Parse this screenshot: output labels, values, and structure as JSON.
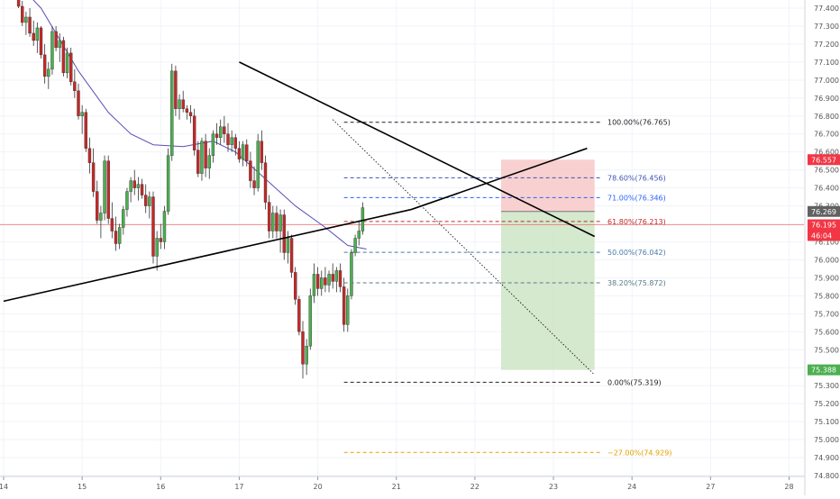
{
  "chart_data": {
    "type": "candlestick",
    "title": "",
    "xlabel": "",
    "ylabel": "",
    "ylim": [
      74.795,
      77.445
    ],
    "y_ticks": [
      "77.400",
      "77.300",
      "77.200",
      "77.100",
      "77.000",
      "76.900",
      "76.800",
      "76.700",
      "76.600",
      "76.500",
      "76.400",
      "76.300",
      "76.200",
      "76.100",
      "76.000",
      "75.900",
      "75.800",
      "75.700",
      "75.600",
      "75.500",
      "75.400",
      "75.300",
      "75.200",
      "75.100",
      "75.000",
      "74.900",
      "74.800"
    ],
    "x_ticks": [
      {
        "label": "14",
        "index": 0
      },
      {
        "label": "15",
        "index": 21
      },
      {
        "label": "16",
        "index": 42
      },
      {
        "label": "17",
        "index": 63
      },
      {
        "label": "20",
        "index": 84
      },
      {
        "label": "21",
        "index": 105
      },
      {
        "label": "22",
        "index": 126
      },
      {
        "label": "23",
        "index": 147
      },
      {
        "label": "24",
        "index": 168
      },
      {
        "label": "27",
        "index": 189
      },
      {
        "label": "28",
        "index": 210
      }
    ],
    "grid": true,
    "colors": {
      "up": "#4caf50",
      "down": "#c62828",
      "ma": "#5b4fb5",
      "trendline": "#000000",
      "fib": "#555555",
      "fib_gold": "#e5a100",
      "stop_zone": "#f8c8c8",
      "target_zone": "#cfe7c8",
      "price_line": "#ef5350"
    },
    "candles": [
      [
        77.46,
        77.5,
        77.4,
        77.41
      ],
      [
        77.41,
        77.44,
        77.3,
        77.32
      ],
      [
        77.32,
        77.38,
        77.25,
        77.35
      ],
      [
        77.35,
        77.4,
        77.24,
        77.26
      ],
      [
        77.26,
        77.33,
        77.19,
        77.22
      ],
      [
        77.22,
        77.32,
        77.15,
        77.29
      ],
      [
        77.29,
        77.3,
        77.12,
        77.14
      ],
      [
        77.14,
        77.2,
        76.98,
        77.02
      ],
      [
        77.02,
        77.1,
        76.95,
        77.06
      ],
      [
        77.06,
        77.3,
        77.03,
        77.27
      ],
      [
        77.27,
        77.3,
        77.16,
        77.18
      ],
      [
        77.18,
        77.26,
        77.1,
        77.22
      ],
      [
        77.22,
        77.24,
        77.02,
        77.04
      ],
      [
        77.04,
        77.18,
        77.01,
        77.15
      ],
      [
        77.15,
        77.18,
        76.97,
        76.99
      ],
      [
        76.99,
        77.06,
        76.9,
        76.94
      ],
      [
        76.94,
        76.98,
        76.78,
        76.8
      ],
      [
        76.8,
        76.86,
        76.7,
        76.82
      ],
      [
        76.82,
        76.84,
        76.6,
        76.62
      ],
      [
        76.62,
        76.68,
        76.48,
        76.54
      ],
      [
        76.54,
        76.62,
        76.35,
        76.38
      ],
      [
        76.38,
        76.44,
        76.2,
        76.22
      ],
      [
        76.22,
        76.3,
        76.12,
        76.26
      ],
      [
        76.26,
        76.58,
        76.22,
        76.55
      ],
      [
        76.55,
        76.58,
        76.2,
        76.23
      ],
      [
        76.23,
        76.32,
        76.12,
        76.16
      ],
      [
        76.16,
        76.24,
        76.05,
        76.09
      ],
      [
        76.09,
        76.2,
        76.06,
        76.18
      ],
      [
        76.18,
        76.3,
        76.14,
        76.28
      ],
      [
        76.28,
        76.4,
        76.24,
        76.38
      ],
      [
        76.38,
        76.46,
        76.32,
        76.44
      ],
      [
        76.44,
        76.5,
        76.36,
        76.4
      ],
      [
        76.4,
        76.46,
        76.33,
        76.42
      ],
      [
        76.42,
        76.45,
        76.34,
        76.36
      ],
      [
        76.36,
        76.42,
        76.26,
        76.3
      ],
      [
        76.3,
        76.38,
        76.23,
        76.35
      ],
      [
        76.35,
        76.38,
        75.98,
        76.02
      ],
      [
        76.02,
        76.16,
        75.94,
        76.12
      ],
      [
        76.12,
        76.2,
        76.06,
        76.1
      ],
      [
        76.1,
        76.3,
        76.06,
        76.27
      ],
      [
        76.27,
        76.62,
        76.25,
        76.58
      ],
      [
        76.58,
        77.09,
        76.55,
        77.05
      ],
      [
        77.05,
        77.08,
        76.8,
        76.84
      ],
      [
        76.84,
        76.92,
        76.78,
        76.89
      ],
      [
        76.89,
        76.94,
        76.82,
        76.84
      ],
      [
        76.84,
        76.86,
        76.78,
        76.82
      ],
      [
        76.82,
        76.86,
        76.76,
        76.8
      ],
      [
        76.8,
        76.84,
        76.58,
        76.61
      ],
      [
        76.61,
        76.66,
        76.46,
        76.48
      ],
      [
        76.48,
        76.68,
        76.44,
        76.66
      ],
      [
        76.66,
        76.7,
        76.46,
        76.51
      ],
      [
        76.51,
        76.62,
        76.45,
        76.58
      ],
      [
        76.58,
        76.72,
        76.54,
        76.7
      ],
      [
        76.7,
        76.76,
        76.64,
        76.68
      ],
      [
        76.68,
        76.78,
        76.64,
        76.74
      ],
      [
        76.74,
        76.8,
        76.65,
        76.7
      ],
      [
        76.7,
        76.76,
        76.6,
        76.64
      ],
      [
        76.64,
        76.72,
        76.6,
        76.68
      ],
      [
        76.68,
        76.7,
        76.58,
        76.62
      ],
      [
        76.62,
        76.66,
        76.54,
        76.56
      ],
      [
        76.56,
        76.66,
        76.52,
        76.64
      ],
      [
        76.64,
        76.67,
        76.52,
        76.55
      ],
      [
        76.55,
        76.6,
        76.4,
        76.44
      ],
      [
        76.44,
        76.52,
        76.36,
        76.4
      ],
      [
        76.4,
        76.7,
        76.38,
        76.66
      ],
      [
        76.66,
        76.72,
        76.5,
        76.54
      ],
      [
        76.54,
        76.58,
        76.28,
        76.32
      ],
      [
        76.32,
        76.36,
        76.12,
        76.16
      ],
      [
        76.16,
        76.3,
        76.12,
        76.26
      ],
      [
        76.26,
        76.3,
        76.12,
        76.16
      ],
      [
        76.16,
        76.28,
        76.04,
        76.25
      ],
      [
        76.25,
        76.28,
        76.0,
        76.04
      ],
      [
        76.04,
        76.16,
        75.98,
        76.12
      ],
      [
        76.12,
        76.14,
        75.9,
        75.93
      ],
      [
        75.93,
        75.96,
        75.75,
        75.78
      ],
      [
        75.78,
        75.8,
        75.58,
        75.6
      ],
      [
        75.6,
        75.66,
        75.34,
        75.42
      ],
      [
        75.42,
        75.56,
        75.36,
        75.52
      ],
      [
        75.52,
        75.84,
        75.5,
        75.8
      ],
      [
        75.8,
        75.98,
        75.76,
        75.92
      ],
      [
        75.92,
        75.96,
        75.8,
        75.84
      ],
      [
        75.84,
        75.94,
        75.8,
        75.9
      ],
      [
        75.9,
        75.96,
        75.82,
        75.86
      ],
      [
        75.86,
        75.94,
        75.82,
        75.92
      ],
      [
        75.92,
        75.98,
        75.84,
        75.88
      ],
      [
        75.88,
        75.96,
        75.82,
        75.94
      ],
      [
        75.94,
        75.98,
        75.82,
        75.85
      ],
      [
        75.85,
        75.9,
        75.6,
        75.64
      ],
      [
        75.64,
        75.84,
        75.6,
        75.8
      ],
      [
        75.8,
        76.06,
        75.78,
        76.04
      ],
      [
        76.04,
        76.14,
        76.02,
        76.12
      ],
      [
        76.12,
        76.22,
        76.08,
        76.16
      ],
      [
        76.16,
        76.32,
        76.14,
        76.29
      ]
    ],
    "candle_start_index": 4,
    "moving_average": [
      [
        0,
        77.62
      ],
      [
        10,
        77.4
      ],
      [
        20,
        77.05
      ],
      [
        28,
        76.82
      ],
      [
        34,
        76.7
      ],
      [
        40,
        76.64
      ],
      [
        48,
        76.63
      ],
      [
        56,
        76.66
      ],
      [
        62,
        76.6
      ],
      [
        70,
        76.45
      ],
      [
        78,
        76.3
      ],
      [
        86,
        76.18
      ],
      [
        92,
        76.08
      ],
      [
        97,
        76.06
      ]
    ],
    "trendlines": [
      {
        "from": [
          0,
          75.77
        ],
        "to": [
          109,
          76.28
        ]
      },
      {
        "from": [
          109,
          76.28
        ],
        "to": [
          156,
          76.62
        ]
      },
      {
        "from": [
          63,
          77.1
        ],
        "to": [
          158,
          76.13
        ]
      },
      {
        "from": [
          88,
          76.78
        ],
        "to": [
          158,
          75.36
        ],
        "style": "dotted"
      }
    ],
    "fibonacci": {
      "levels": [
        {
          "label": "100.00%(76.765)",
          "value": 76.765,
          "color": "#222222",
          "start": 91,
          "dash": "4 3"
        },
        {
          "label": "78.60%(76.456)",
          "value": 76.456,
          "color": "#3f51b5",
          "start": 91,
          "dash": "4 3"
        },
        {
          "label": "71.00%(76.346)",
          "value": 76.346,
          "color": "#2962ff",
          "start": 91,
          "dash": "4 3"
        },
        {
          "label": "61.80%(76.213)",
          "value": 76.213,
          "color": "#c62828",
          "start": 91,
          "dash": "4 3"
        },
        {
          "label": "50.00%(76.042)",
          "value": 76.042,
          "color": "#4a7aa8",
          "start": 91,
          "dash": "4 3"
        },
        {
          "label": "38.20%(75.872)",
          "value": 75.872,
          "color": "#5a7a8a",
          "start": 91,
          "dash": "4 3"
        },
        {
          "label": "0.00%(75.319)",
          "value": 75.319,
          "color": "#222222",
          "start": 91,
          "dash": "4 3"
        },
        {
          "label": "−27.00%(74.929)",
          "value": 74.929,
          "color": "#e5a100",
          "start": 91,
          "dash": "4 3"
        }
      ],
      "end": 160
    },
    "position": {
      "entry": 76.269,
      "stop": 76.557,
      "target": 75.388,
      "start_index": 133,
      "end_index": 158
    },
    "price_line": 76.195,
    "price_labels": [
      {
        "text": "76.557",
        "value": 76.557,
        "bg": "#f23645",
        "fg": "#ffffff"
      },
      {
        "text": "76.269",
        "value": 76.269,
        "bg": "#616161",
        "fg": "#ffffff"
      },
      {
        "text": "76.195",
        "value": 76.195,
        "bg": "#f23645",
        "fg": "#ffffff"
      },
      {
        "text": "46:04",
        "value": 76.135,
        "bg": "#f23645",
        "fg": "#ffffff"
      },
      {
        "text": "75.388",
        "value": 75.388,
        "bg": "#4caf50",
        "fg": "#ffffff"
      }
    ]
  }
}
